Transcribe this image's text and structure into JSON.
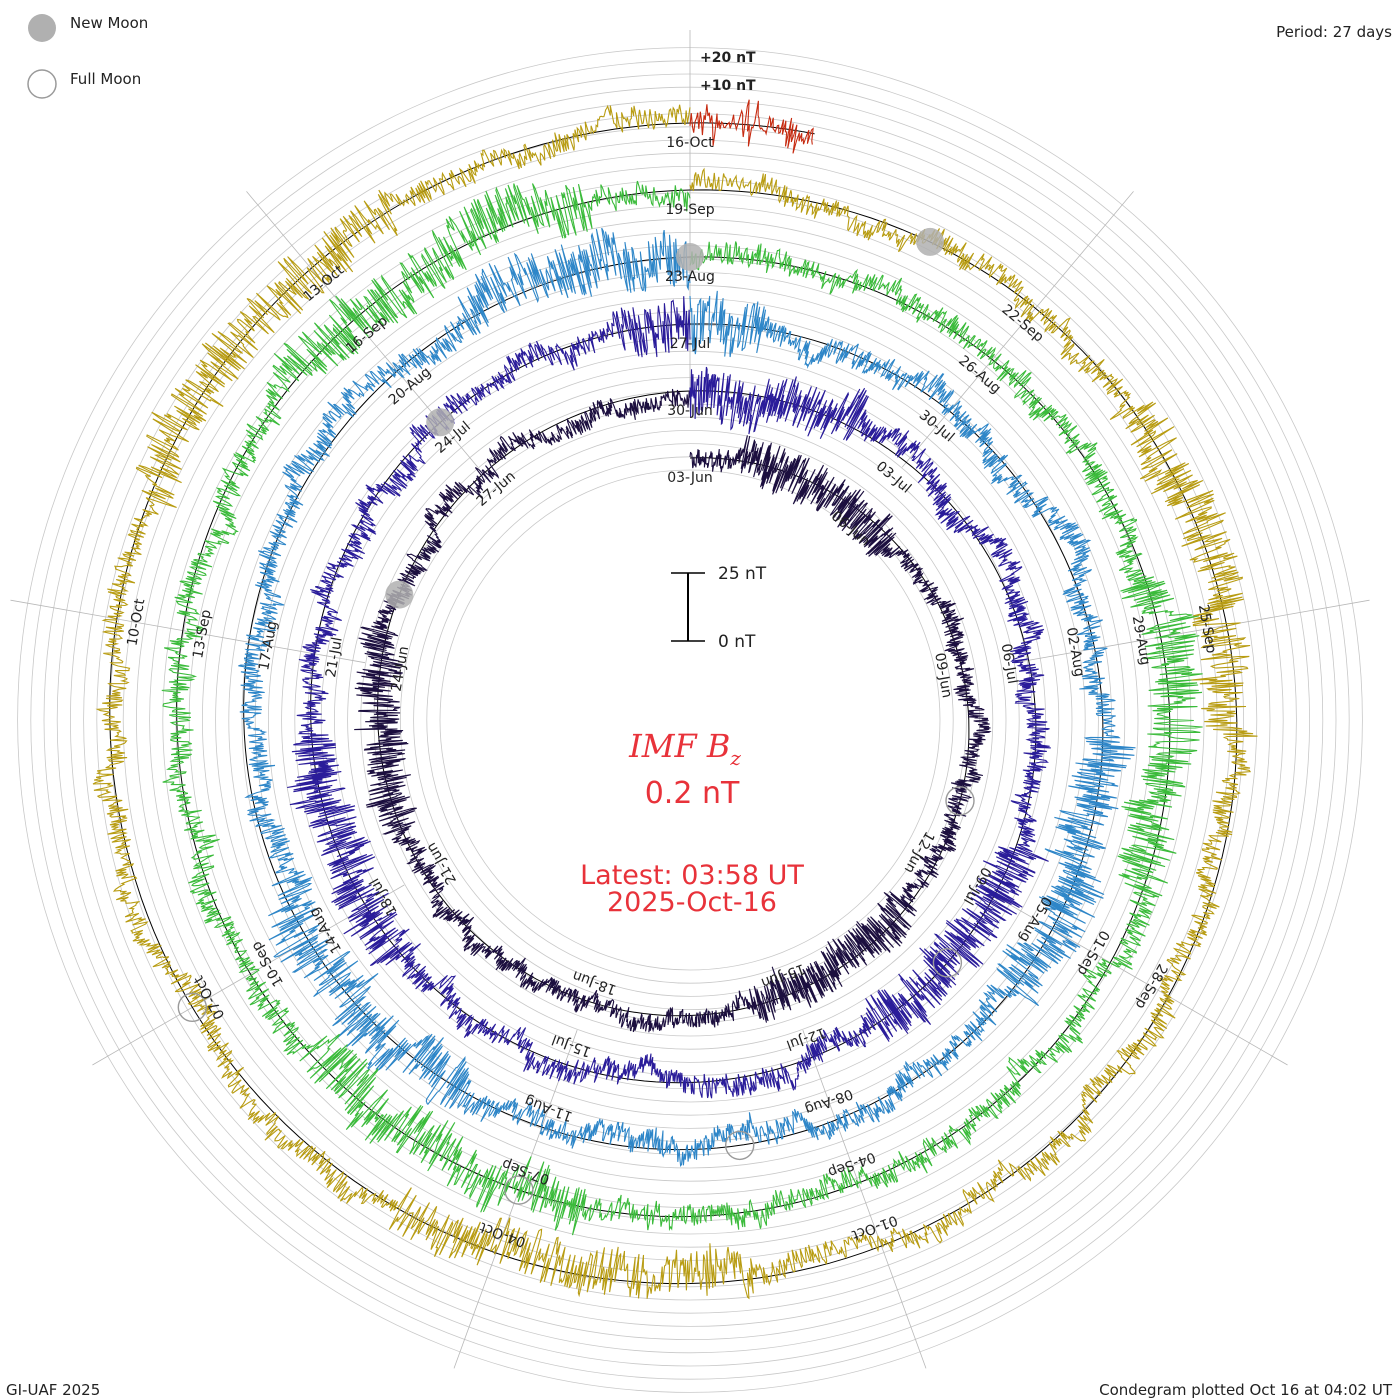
{
  "header": {
    "legend": {
      "new_moon": "New Moon",
      "full_moon": "Full Moon"
    },
    "period": "Period: 27 days"
  },
  "footer": {
    "credit": "GI-UAF 2025",
    "plotted": "Condegram plotted Oct 16 at 04:02 UT"
  },
  "center": {
    "title_main": "IMF B",
    "title_sub": "z",
    "value": "0.2 nT",
    "latest_label": "Latest: 03:58 UT",
    "latest_date": "2025-Oct-16",
    "scale_top": "25 nT",
    "scale_bottom": "0 nT"
  },
  "chart_data": {
    "type": "line",
    "title": "IMF Bz",
    "subtitle": "0.2 nT",
    "period_days": 27,
    "ring_labels": [
      "+20 nT",
      "+10 nT"
    ],
    "colors": {
      "new_moon": "#b0b0b0",
      "full_moon": "#b0b0b0",
      "grid": "#c8c8c8",
      "baseline": "#000000",
      "accent": "#e8323a"
    },
    "series": [
      {
        "color": "#1c0f3f",
        "amp": 1.0,
        "dates": [
          "03-Jun",
          "06-Jun",
          "09-Jun",
          "12-Jun",
          "15-Jun",
          "18-Jun",
          "21-Jun",
          "24-Jun",
          "27-Jun"
        ]
      },
      {
        "color": "#2a1c9a",
        "amp": 1.2,
        "dates": [
          "30-Jun",
          "03-Jul",
          "06-Jul",
          "09-Jul",
          "12-Jul",
          "15-Jul",
          "18-Jul",
          "21-Jul",
          "24-Jul"
        ]
      },
      {
        "color": "#2e86c8",
        "amp": 1.25,
        "dates": [
          "27-Jul",
          "30-Jul",
          "02-Aug",
          "05-Aug",
          "08-Aug",
          "11-Aug",
          "14-Aug",
          "17-Aug",
          "20-Aug"
        ]
      },
      {
        "color": "#3bbb3b",
        "amp": 1.25,
        "dates": [
          "23-Aug",
          "26-Aug",
          "29-Aug",
          "01-Sep",
          "04-Sep",
          "07-Sep",
          "10-Sep",
          "13-Sep",
          "16-Sep"
        ]
      },
      {
        "color": "#b89c12",
        "amp": 1.15,
        "dates": [
          "19-Sep",
          "22-Sep",
          "25-Sep",
          "28-Sep",
          "01-Oct",
          "04-Oct",
          "07-Oct",
          "10-Oct",
          "13-Oct"
        ]
      },
      {
        "color": "#c62a10",
        "amp": 1.1,
        "dates": [
          "16-Oct"
        ]
      }
    ],
    "new_moons": [
      "25-Jun",
      "24-Jul",
      "23-Aug",
      "21-Sep"
    ],
    "full_moons": [
      "11-Jun",
      "10-Jul",
      "09-Aug",
      "07-Sep",
      "07-Oct"
    ]
  }
}
